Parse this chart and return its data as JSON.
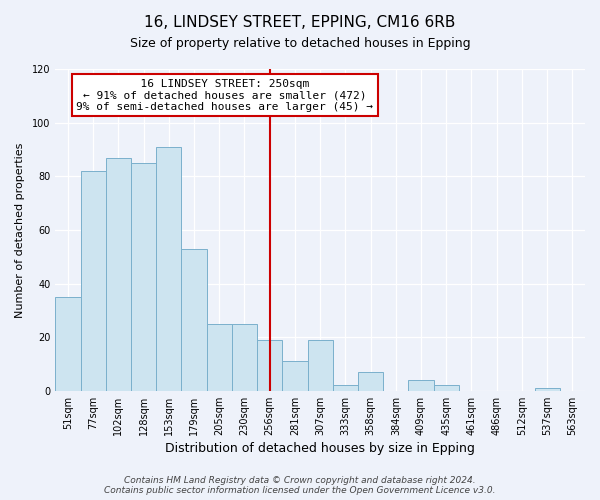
{
  "title": "16, LINDSEY STREET, EPPING, CM16 6RB",
  "subtitle": "Size of property relative to detached houses in Epping",
  "xlabel": "Distribution of detached houses by size in Epping",
  "ylabel": "Number of detached properties",
  "bar_labels": [
    "51sqm",
    "77sqm",
    "102sqm",
    "128sqm",
    "153sqm",
    "179sqm",
    "205sqm",
    "230sqm",
    "256sqm",
    "281sqm",
    "307sqm",
    "333sqm",
    "358sqm",
    "384sqm",
    "409sqm",
    "435sqm",
    "461sqm",
    "486sqm",
    "512sqm",
    "537sqm",
    "563sqm"
  ],
  "bar_values": [
    35,
    82,
    87,
    85,
    91,
    53,
    25,
    25,
    19,
    11,
    19,
    2,
    7,
    0,
    4,
    2,
    0,
    0,
    0,
    1,
    0
  ],
  "bar_color": "#cde4f0",
  "bar_edge_color": "#7ab0cc",
  "vline_index": 8,
  "vline_color": "#cc0000",
  "annotation_title": "16 LINDSEY STREET: 250sqm",
  "annotation_line1": "← 91% of detached houses are smaller (472)",
  "annotation_line2": "9% of semi-detached houses are larger (45) →",
  "annotation_box_color": "#ffffff",
  "annotation_box_edge_color": "#cc0000",
  "ylim": [
    0,
    120
  ],
  "yticks": [
    0,
    20,
    40,
    60,
    80,
    100,
    120
  ],
  "footer_line1": "Contains HM Land Registry data © Crown copyright and database right 2024.",
  "footer_line2": "Contains public sector information licensed under the Open Government Licence v3.0.",
  "background_color": "#eef2fa",
  "grid_color": "#ffffff",
  "title_fontsize": 11,
  "subtitle_fontsize": 9,
  "xlabel_fontsize": 9,
  "ylabel_fontsize": 8,
  "tick_fontsize": 7,
  "annotation_fontsize": 8,
  "footer_fontsize": 6.5
}
